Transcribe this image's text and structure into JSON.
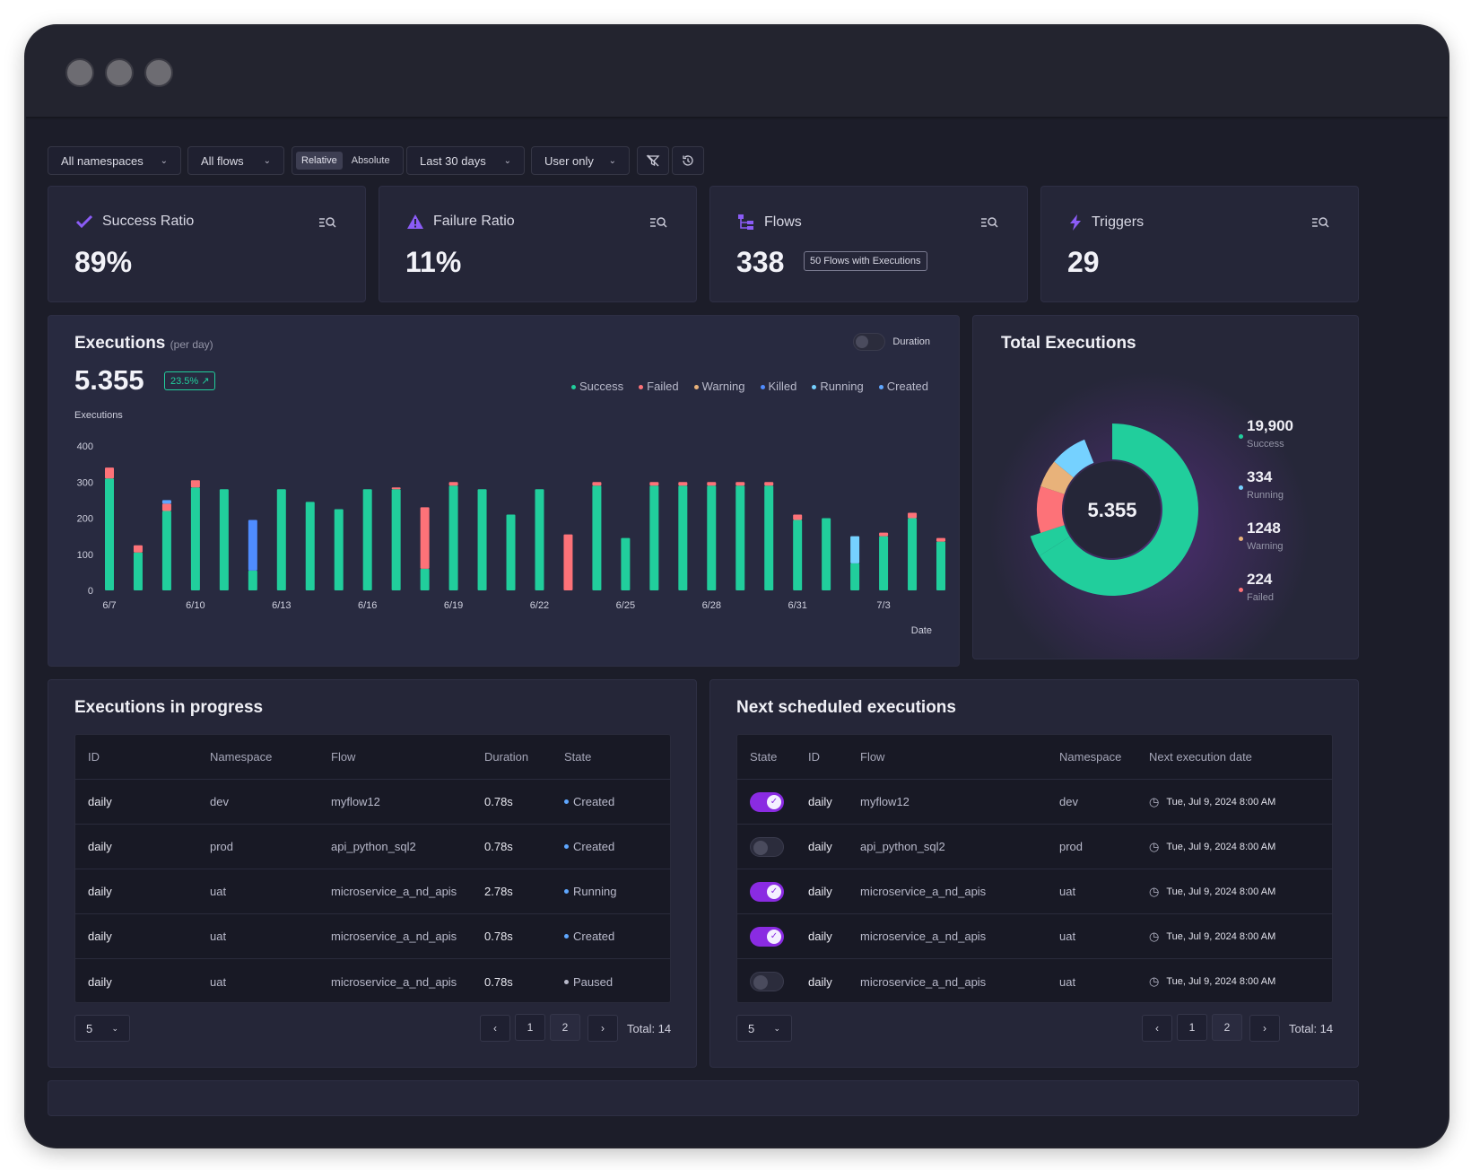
{
  "filters": {
    "namespace": "All namespaces",
    "flows": "All flows",
    "relative": "Relative",
    "absolute": "Absolute",
    "range": "Last 30 days",
    "user": "User only",
    "chevron": "⌄"
  },
  "kpis": [
    {
      "title": "Success Ratio",
      "value": "89%",
      "icon": "check-icon",
      "color": "#8b5cf6"
    },
    {
      "title": "Failure Ratio",
      "value": "11%",
      "icon": "warning-triangle-icon",
      "color": "#8b5cf6"
    },
    {
      "title": "Flows",
      "value": "338",
      "badge": "50 Flows with Executions",
      "icon": "flow-tree-icon",
      "color": "#8b5cf6"
    },
    {
      "title": "Triggers",
      "value": "29",
      "icon": "lightning-icon",
      "color": "#8b5cf6"
    }
  ],
  "executions": {
    "title": "Executions",
    "subtitle": "(per day)",
    "total": "5.355",
    "change": "23.5% ↗",
    "duration_toggle": "Duration",
    "legend": [
      {
        "label": "Success",
        "color": "#21ce9c"
      },
      {
        "label": "Failed",
        "color": "#fd7278"
      },
      {
        "label": "Warning",
        "color": "#e8b27a"
      },
      {
        "label": "Killed",
        "color": "#4f8cff"
      },
      {
        "label": "Running",
        "color": "#75d1ff"
      },
      {
        "label": "Created",
        "color": "#5fa7ff"
      }
    ]
  },
  "chart_data": {
    "type": "bar",
    "ylabel": "Executions",
    "xlabel": "Date",
    "ylim": [
      0,
      400
    ],
    "yticks": [
      0,
      100,
      200,
      300,
      400
    ],
    "tick_labels": [
      "6/7",
      "6/10",
      "6/13",
      "6/16",
      "6/19",
      "6/22",
      "6/25",
      "6/28",
      "6/31",
      "7/3"
    ],
    "tick_positions": [
      0,
      3,
      6,
      9,
      12,
      15,
      18,
      21,
      24,
      27
    ],
    "series": [
      {
        "name": "Success",
        "values": [
          310,
          105,
          220,
          285,
          280,
          55,
          280,
          245,
          225,
          280,
          280,
          60,
          290,
          280,
          210,
          280,
          0,
          290,
          145,
          290,
          290,
          290,
          290,
          290,
          195,
          200,
          75,
          150,
          200,
          135
        ]
      },
      {
        "name": "Failed",
        "values": [
          30,
          20,
          20,
          20,
          0,
          0,
          0,
          0,
          0,
          0,
          5,
          170,
          10,
          0,
          0,
          0,
          155,
          10,
          0,
          10,
          10,
          10,
          10,
          10,
          15,
          0,
          0,
          10,
          15,
          10
        ]
      },
      {
        "name": "Killed",
        "values": [
          0,
          0,
          0,
          0,
          0,
          140,
          0,
          0,
          0,
          0,
          0,
          0,
          0,
          0,
          0,
          0,
          0,
          0,
          0,
          0,
          0,
          0,
          0,
          0,
          0,
          0,
          0,
          0,
          0,
          0
        ]
      },
      {
        "name": "Running",
        "values": [
          0,
          0,
          0,
          0,
          0,
          0,
          0,
          0,
          0,
          0,
          0,
          0,
          0,
          0,
          0,
          0,
          0,
          0,
          0,
          0,
          0,
          0,
          0,
          0,
          0,
          0,
          75,
          0,
          0,
          0
        ]
      },
      {
        "name": "Created",
        "values": [
          0,
          0,
          10,
          0,
          0,
          0,
          0,
          0,
          0,
          0,
          0,
          0,
          0,
          0,
          0,
          0,
          0,
          0,
          0,
          0,
          0,
          0,
          0,
          0,
          0,
          0,
          0,
          0,
          0,
          0
        ]
      }
    ]
  },
  "total_executions": {
    "title": "Total Executions",
    "center_value": "5.355",
    "items": [
      {
        "value": "19,900",
        "label": "Success",
        "color": "#21ce9c"
      },
      {
        "value": "334",
        "label": "Running",
        "color": "#75d1ff"
      },
      {
        "value": "1248",
        "label": "Warning",
        "color": "#e8b27a"
      },
      {
        "value": "224",
        "label": "Failed",
        "color": "#fd7278"
      }
    ]
  },
  "in_progress": {
    "title": "Executions in progress",
    "columns": [
      "ID",
      "Namespace",
      "Flow",
      "Duration",
      "State"
    ],
    "rows": [
      {
        "id": "daily",
        "namespace": "dev",
        "flow": "myflow12",
        "duration": "0.78s",
        "state": "Created"
      },
      {
        "id": "daily",
        "namespace": "prod",
        "flow": "api_python_sql2",
        "duration": "0.78s",
        "state": "Created"
      },
      {
        "id": "daily",
        "namespace": "uat",
        "flow": "microservice_a_nd_apis",
        "duration": "2.78s",
        "state": "Running"
      },
      {
        "id": "daily",
        "namespace": "uat",
        "flow": "microservice_a_nd_apis",
        "duration": "0.78s",
        "state": "Created"
      },
      {
        "id": "daily",
        "namespace": "uat",
        "flow": "microservice_a_nd_apis",
        "duration": "0.78s",
        "state": "Paused"
      }
    ],
    "page_size": "5",
    "pages": [
      "1",
      "2"
    ],
    "total": "Total: 14"
  },
  "scheduled": {
    "title": "Next scheduled executions",
    "columns": [
      "State",
      "ID",
      "Flow",
      "Namespace",
      "Next execution date"
    ],
    "rows": [
      {
        "enabled": true,
        "id": "daily",
        "flow": "myflow12",
        "namespace": "dev",
        "date": "Tue, Jul 9, 2024 8:00 AM"
      },
      {
        "enabled": false,
        "id": "daily",
        "flow": "api_python_sql2",
        "namespace": "prod",
        "date": "Tue, Jul 9, 2024 8:00 AM"
      },
      {
        "enabled": true,
        "id": "daily",
        "flow": "microservice_a_nd_apis",
        "namespace": "uat",
        "date": "Tue, Jul 9, 2024 8:00 AM"
      },
      {
        "enabled": true,
        "id": "daily",
        "flow": "microservice_a_nd_apis",
        "namespace": "uat",
        "date": "Tue, Jul 9, 2024 8:00 AM"
      },
      {
        "enabled": false,
        "id": "daily",
        "flow": "microservice_a_nd_apis",
        "namespace": "uat",
        "date": "Tue, Jul 9, 2024 8:00 AM"
      }
    ],
    "page_size": "5",
    "pages": [
      "1",
      "2"
    ],
    "total": "Total: 14"
  }
}
